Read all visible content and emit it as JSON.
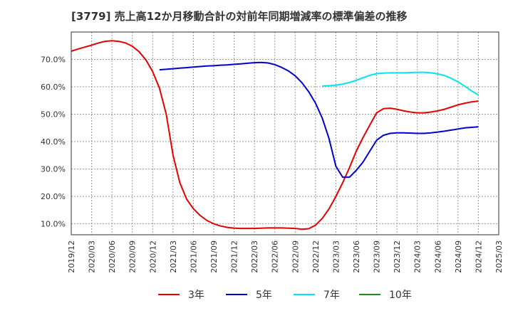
{
  "chart_data": {
    "type": "line",
    "title": "[3779]  売上高12か月移動合計の対前年同期増減率の標準偏差の推移",
    "xlabel": "",
    "ylabel": "",
    "ylim": [
      6.0,
      80.0
    ],
    "y_ticks": [
      10,
      20,
      30,
      40,
      50,
      60,
      70
    ],
    "y_tick_labels": [
      "10.0%",
      "20.0%",
      "30.0%",
      "40.0%",
      "50.0%",
      "60.0%",
      "70.0%"
    ],
    "x_ticks": [
      "2019/12",
      "2020/03",
      "2020/06",
      "2020/09",
      "2020/12",
      "2021/03",
      "2021/06",
      "2021/09",
      "2021/12",
      "2022/03",
      "2022/06",
      "2022/09",
      "2022/12",
      "2023/03",
      "2023/06",
      "2023/09",
      "2023/12",
      "2024/03",
      "2024/06",
      "2024/09",
      "2024/12",
      "2025/03"
    ],
    "grid": true,
    "legend_position": "bottom",
    "series": [
      {
        "name": "3年",
        "color": "#e60000",
        "points": [
          [
            "2019/12",
            73.0
          ],
          [
            "2020/01",
            73.8
          ],
          [
            "2020/02",
            74.5
          ],
          [
            "2020/03",
            75.2
          ],
          [
            "2020/04",
            76.0
          ],
          [
            "2020/05",
            76.6
          ],
          [
            "2020/06",
            76.8
          ],
          [
            "2020/07",
            76.6
          ],
          [
            "2020/08",
            76.0
          ],
          [
            "2020/09",
            74.8
          ],
          [
            "2020/10",
            72.8
          ],
          [
            "2020/11",
            69.8
          ],
          [
            "2020/12",
            65.5
          ],
          [
            "2020/13",
            59.5
          ],
          [
            "2021/02",
            50.0
          ],
          [
            "2021/03",
            35.0
          ],
          [
            "2021/04",
            25.0
          ],
          [
            "2021/05",
            19.0
          ],
          [
            "2021/06",
            15.5
          ],
          [
            "2021/07",
            13.0
          ],
          [
            "2021/08",
            11.2
          ],
          [
            "2021/09",
            10.0
          ],
          [
            "2021/10",
            9.2
          ],
          [
            "2021/11",
            8.7
          ],
          [
            "2021/12",
            8.4
          ],
          [
            "2022/01",
            8.3
          ],
          [
            "2022/02",
            8.3
          ],
          [
            "2022/03",
            8.3
          ],
          [
            "2022/04",
            8.4
          ],
          [
            "2022/05",
            8.5
          ],
          [
            "2022/06",
            8.5
          ],
          [
            "2022/07",
            8.5
          ],
          [
            "2022/08",
            8.4
          ],
          [
            "2022/09",
            8.3
          ],
          [
            "2022/10",
            8.0
          ],
          [
            "2022/11",
            8.2
          ],
          [
            "2022/12",
            9.5
          ],
          [
            "2022/13",
            12.0
          ],
          [
            "2023/02",
            15.5
          ],
          [
            "2023/03",
            20.0
          ],
          [
            "2023/04",
            25.0
          ],
          [
            "2023/05",
            30.5
          ],
          [
            "2023/06",
            36.5
          ],
          [
            "2023/07",
            41.5
          ],
          [
            "2023/08",
            46.0
          ],
          [
            "2023/09",
            50.5
          ],
          [
            "2023/10",
            52.0
          ],
          [
            "2023/11",
            52.2
          ],
          [
            "2023/12",
            51.8
          ],
          [
            "2024/01",
            51.2
          ],
          [
            "2024/02",
            50.8
          ],
          [
            "2024/03",
            50.5
          ],
          [
            "2024/04",
            50.5
          ],
          [
            "2024/05",
            50.8
          ],
          [
            "2024/06",
            51.2
          ],
          [
            "2024/07",
            51.8
          ],
          [
            "2024/08",
            52.6
          ],
          [
            "2024/09",
            53.4
          ],
          [
            "2024/10",
            54.0
          ],
          [
            "2024/11",
            54.5
          ],
          [
            "2024/12",
            54.8
          ]
        ]
      },
      {
        "name": "5年",
        "color": "#0000cc",
        "points": [
          [
            "2021/01",
            66.2
          ],
          [
            "2021/02",
            66.4
          ],
          [
            "2021/03",
            66.6
          ],
          [
            "2021/04",
            66.8
          ],
          [
            "2021/05",
            67.0
          ],
          [
            "2021/06",
            67.2
          ],
          [
            "2021/07",
            67.4
          ],
          [
            "2021/08",
            67.6
          ],
          [
            "2021/09",
            67.7
          ],
          [
            "2021/10",
            67.9
          ],
          [
            "2021/11",
            68.0
          ],
          [
            "2021/12",
            68.2
          ],
          [
            "2022/01",
            68.4
          ],
          [
            "2022/02",
            68.6
          ],
          [
            "2022/03",
            68.8
          ],
          [
            "2022/04",
            68.9
          ],
          [
            "2022/05",
            68.7
          ],
          [
            "2022/06",
            68.1
          ],
          [
            "2022/07",
            67.1
          ],
          [
            "2022/08",
            65.8
          ],
          [
            "2022/09",
            64.0
          ],
          [
            "2022/10",
            61.5
          ],
          [
            "2022/11",
            58.2
          ],
          [
            "2022/12",
            54.0
          ],
          [
            "2022/13",
            48.5
          ],
          [
            "2023/02",
            41.0
          ],
          [
            "2023/03",
            31.0
          ],
          [
            "2023/04",
            27.0
          ],
          [
            "2023/05",
            27.0
          ],
          [
            "2023/06",
            29.5
          ],
          [
            "2023/07",
            32.5
          ],
          [
            "2023/08",
            36.5
          ],
          [
            "2023/09",
            40.5
          ],
          [
            "2023/10",
            42.3
          ],
          [
            "2023/11",
            43.0
          ],
          [
            "2023/12",
            43.2
          ],
          [
            "2024/01",
            43.2
          ],
          [
            "2024/02",
            43.1
          ],
          [
            "2024/03",
            43.0
          ],
          [
            "2024/04",
            43.0
          ],
          [
            "2024/05",
            43.2
          ],
          [
            "2024/06",
            43.5
          ],
          [
            "2024/07",
            43.8
          ],
          [
            "2024/08",
            44.2
          ],
          [
            "2024/09",
            44.6
          ],
          [
            "2024/10",
            45.0
          ],
          [
            "2024/11",
            45.2
          ],
          [
            "2024/12",
            45.4
          ]
        ]
      },
      {
        "name": "7年",
        "color": "#00e5ee",
        "points": [
          [
            "2022/13",
            60.3
          ],
          [
            "2023/02",
            60.4
          ],
          [
            "2023/03",
            60.6
          ],
          [
            "2023/04",
            61.0
          ],
          [
            "2023/05",
            61.6
          ],
          [
            "2023/06",
            62.4
          ],
          [
            "2023/07",
            63.3
          ],
          [
            "2023/08",
            64.2
          ],
          [
            "2023/09",
            64.8
          ],
          [
            "2023/10",
            65.0
          ],
          [
            "2023/11",
            65.1
          ],
          [
            "2023/12",
            65.1
          ],
          [
            "2024/01",
            65.1
          ],
          [
            "2024/02",
            65.2
          ],
          [
            "2024/03",
            65.3
          ],
          [
            "2024/04",
            65.3
          ],
          [
            "2024/05",
            65.1
          ],
          [
            "2024/06",
            64.7
          ],
          [
            "2024/07",
            64.1
          ],
          [
            "2024/08",
            63.1
          ],
          [
            "2024/09",
            61.8
          ],
          [
            "2024/10",
            60.2
          ],
          [
            "2024/11",
            58.5
          ],
          [
            "2024/12",
            57.0
          ]
        ]
      },
      {
        "name": "10年",
        "color": "#228b22",
        "points": []
      }
    ]
  }
}
